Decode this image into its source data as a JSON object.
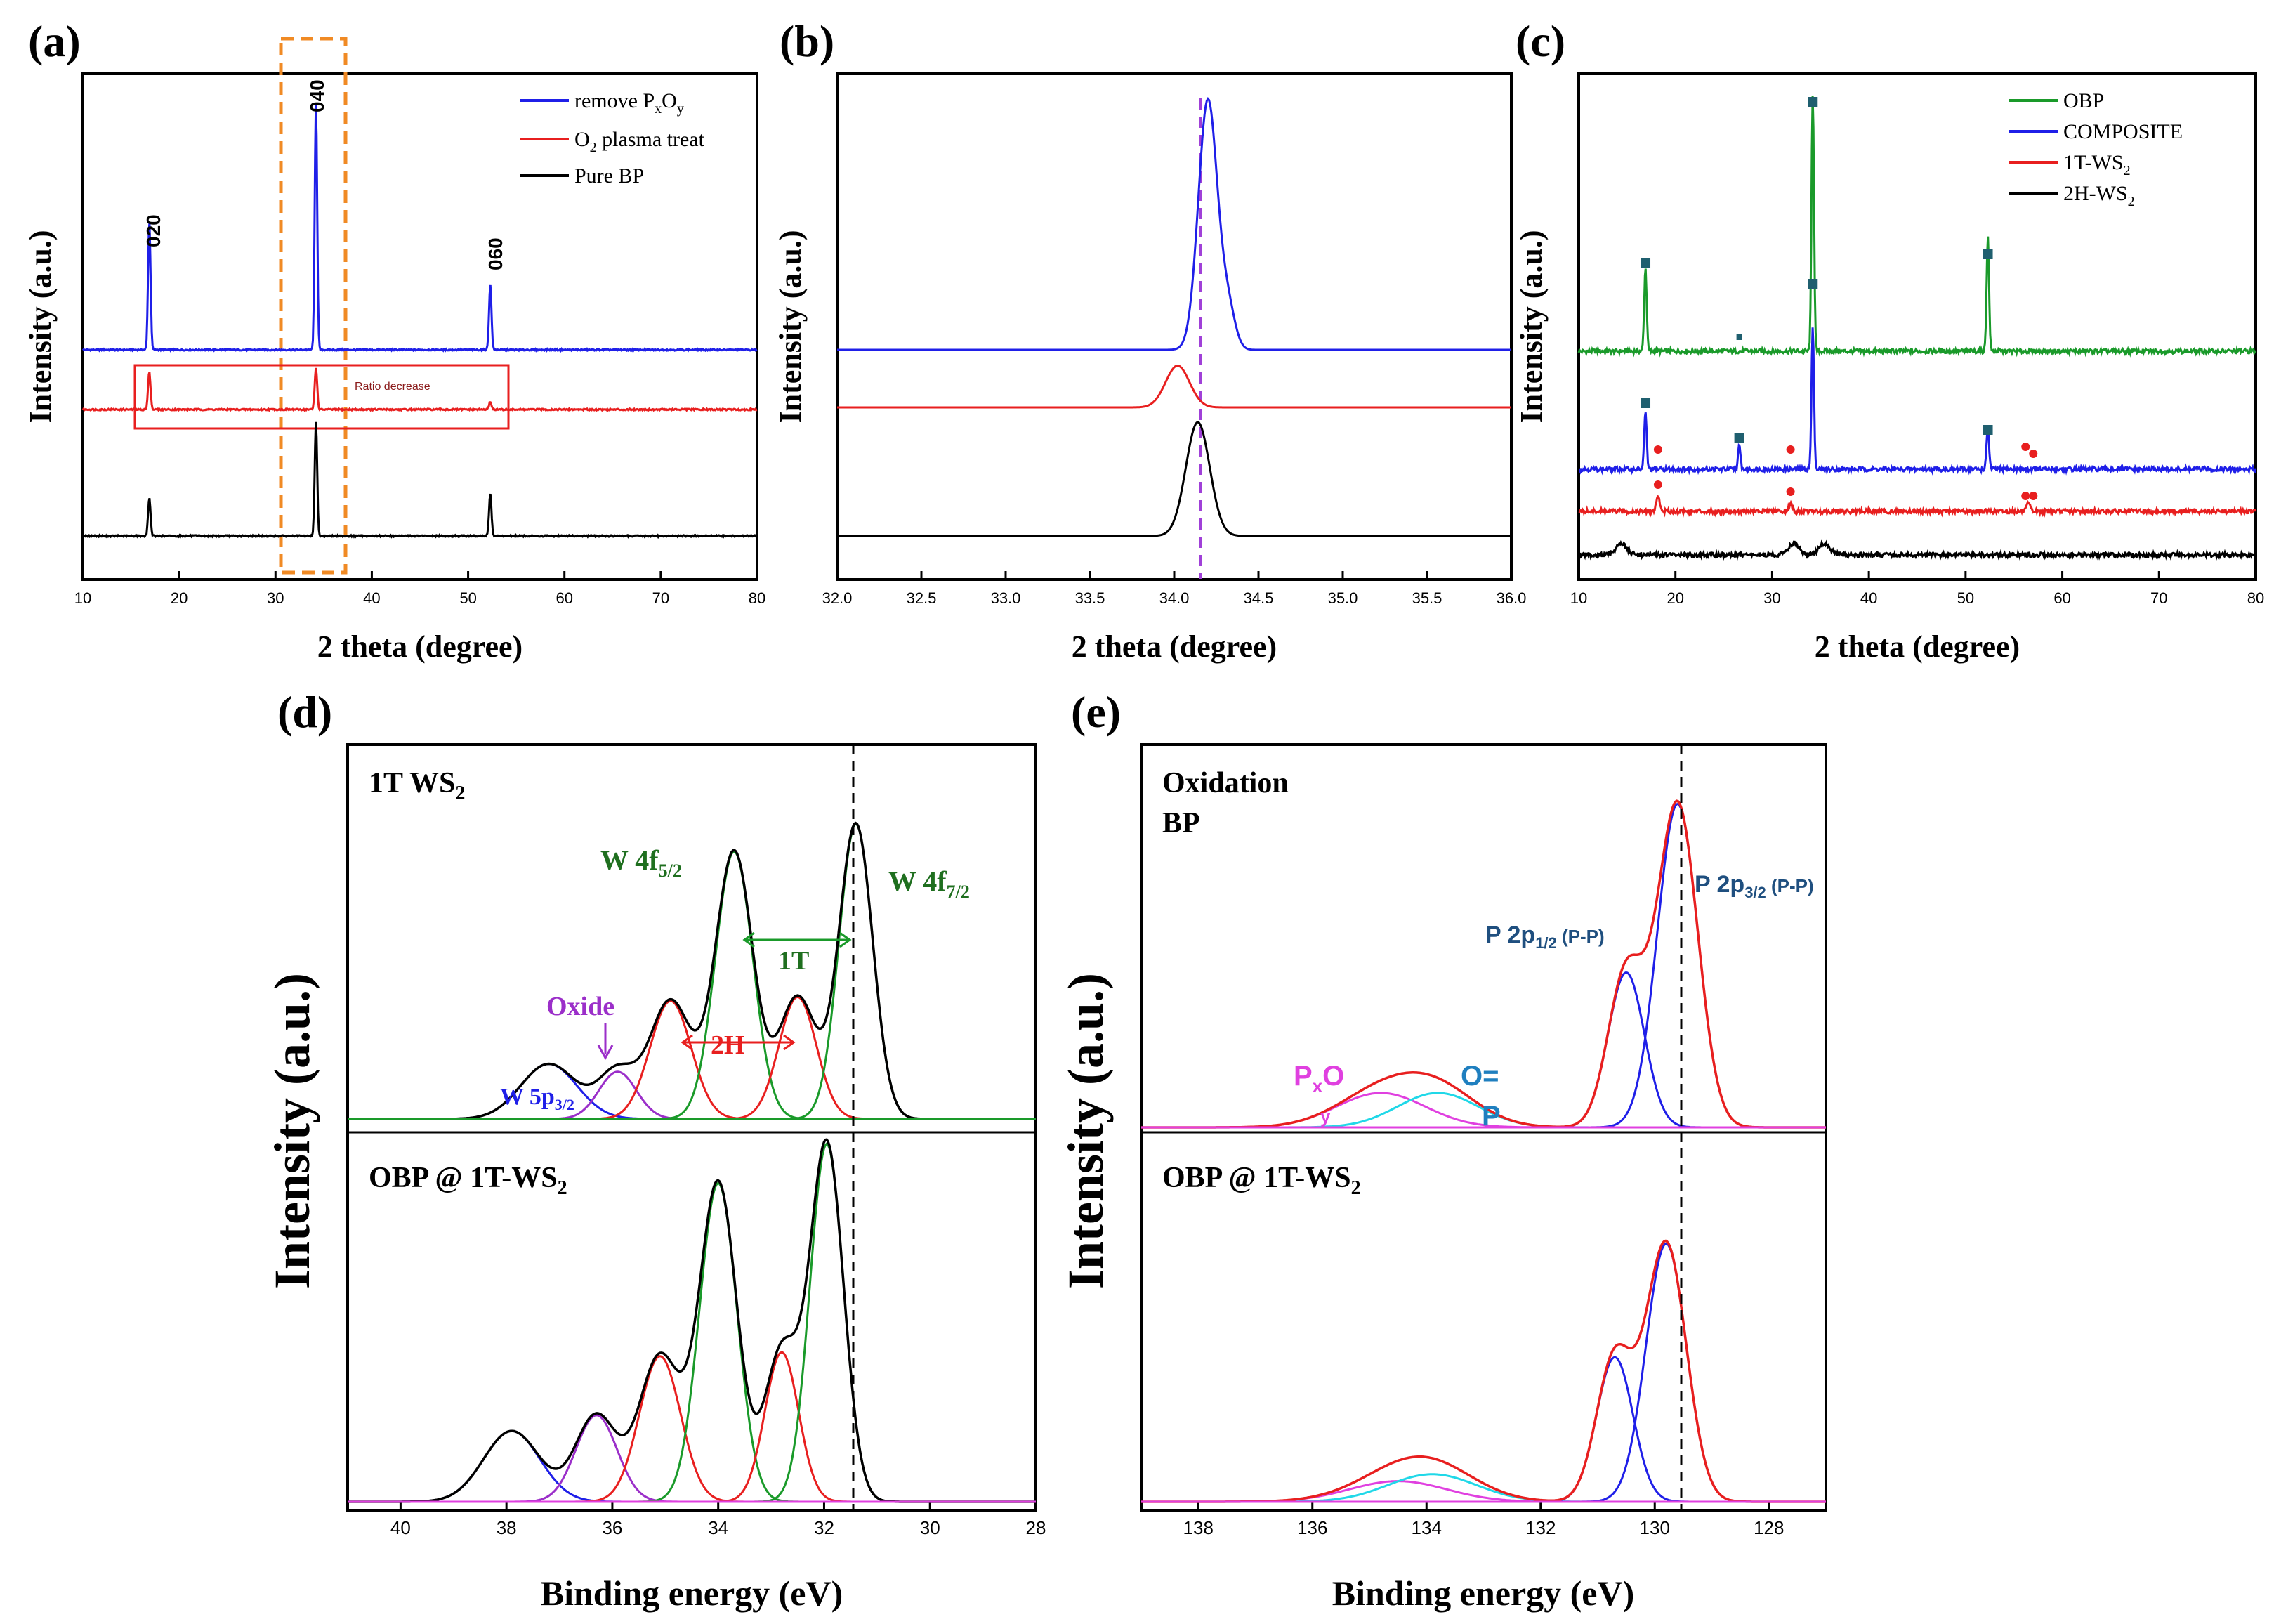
{
  "panels": {
    "a": {
      "letter": "(a)",
      "xlabel": "2 theta (degree)",
      "ylabel": "Intensity (a.u.)",
      "xlim": [
        10,
        80
      ],
      "xticks": [
        "10",
        "20",
        "30",
        "40",
        "50",
        "60",
        "70",
        "80"
      ],
      "legend": [
        {
          "label": "remove P",
          "sub1": "x",
          "mid": "O",
          "sub2": "y",
          "color": "#1f1fe8"
        },
        {
          "label": "O",
          "sub1": "2",
          "mid": " plasma treat",
          "sub2": "",
          "color": "#e81f1f"
        },
        {
          "label": "Pure BP",
          "sub1": "",
          "mid": "",
          "sub2": "",
          "color": "#000000"
        }
      ],
      "peak_labels": [
        "020",
        "040",
        "060"
      ],
      "annotation": "Ratio decrease"
    },
    "b": {
      "letter": "(b)",
      "xlabel": "2 theta (degree)",
      "ylabel": "Intensity (a.u.)",
      "xlim": [
        32.0,
        36.0
      ],
      "xticks": [
        "32.0",
        "32.5",
        "33.0",
        "33.5",
        "34.0",
        "34.5",
        "35.0",
        "35.5",
        "36.0"
      ]
    },
    "c": {
      "letter": "(c)",
      "xlabel": "2 theta (degree)",
      "ylabel": "Intensity (a.u.)",
      "xlim": [
        10,
        80
      ],
      "xticks": [
        "10",
        "20",
        "30",
        "40",
        "50",
        "60",
        "70",
        "80"
      ],
      "legend": [
        {
          "label": "OBP",
          "sub": "",
          "color": "#1a9a2a"
        },
        {
          "label": "COMPOSITE",
          "sub": "",
          "color": "#1f1fe8"
        },
        {
          "label": "1T-WS",
          "sub": "2",
          "color": "#e81f1f"
        },
        {
          "label": "2H-WS",
          "sub": "2",
          "color": "#000000"
        }
      ]
    },
    "d": {
      "letter": "(d)",
      "xlabel": "Binding energy (eV)",
      "ylabel": "Intensity (a.u.)",
      "xlim": [
        41,
        28
      ],
      "xticks": [
        "40",
        "38",
        "36",
        "34",
        "32",
        "30",
        "28"
      ],
      "top_title": "1T WS",
      "top_title_sub": "2",
      "bottom_title": "OBP @ 1T-WS",
      "bottom_title_sub": "2",
      "labels": {
        "w4f52": "W 4f",
        "w4f52_sub": "5/2",
        "w4f72": "W 4f",
        "w4f72_sub": "7/2",
        "oxide": "Oxide",
        "w5p": "W 5p",
        "w5p_sub": "3/2",
        "t1": "1T",
        "h2": "2H"
      }
    },
    "e": {
      "letter": "(e)",
      "xlabel": "Binding energy (eV)",
      "ylabel": "Intensity (a.u.)",
      "xlim": [
        139,
        127
      ],
      "xticks": [
        "138",
        "136",
        "134",
        "132",
        "130",
        "128"
      ],
      "top_title1": "Oxidation",
      "top_title2": "BP",
      "bottom_title": "OBP @ 1T-WS",
      "bottom_title_sub": "2",
      "labels": {
        "p32": "P 2p",
        "p32_sub": "3/2",
        "p32_tail": " (P-P)",
        "p12": "P 2p",
        "p12_sub": "1/2",
        "p12_tail": " (P-P)",
        "pxo": "P",
        "pxo_sub": "x",
        "pxo_o": "O",
        "pxo_y": "y",
        "op1": "O=",
        "op2": "P"
      }
    }
  },
  "colors": {
    "blue": "#1f1fe8",
    "red": "#e81f1f",
    "green": "#1a9a2a",
    "black": "#000000",
    "purple": "#9b2fc9",
    "magenta": "#e040e0",
    "cyan": "#20d8e8",
    "orange_dash": "#f08a24",
    "violet_dash": "#a040d8",
    "marker_teal": "#1f5f6f",
    "label_blue_dark": "#1f4f7f",
    "label_green": "#1f6f1f"
  },
  "chart_data": [
    {
      "panel": "a",
      "type": "line",
      "x_range": [
        10,
        80
      ],
      "series": [
        {
          "name": "remove PxOy",
          "peaks": [
            {
              "x": 16.9,
              "height": 0.34
            },
            {
              "x": 34.2,
              "height": 0.65
            },
            {
              "x": 52.3,
              "height": 0.17
            }
          ]
        },
        {
          "name": "O2 plasma treat",
          "peaks": [
            {
              "x": 16.9,
              "height": 0.1
            },
            {
              "x": 34.2,
              "height": 0.11
            },
            {
              "x": 52.3,
              "height": 0.02
            }
          ]
        },
        {
          "name": "Pure BP",
          "peaks": [
            {
              "x": 16.9,
              "height": 0.1
            },
            {
              "x": 34.2,
              "height": 0.3
            },
            {
              "x": 52.3,
              "height": 0.11
            }
          ]
        }
      ]
    },
    {
      "panel": "b",
      "type": "line",
      "x_range": [
        32.0,
        36.0
      ],
      "reference_line_x": 34.2,
      "series": [
        {
          "name": "remove PxOy",
          "peak_x": 34.2,
          "height": 0.66
        },
        {
          "name": "O2 plasma treat",
          "peak_x": 34.02,
          "height": 0.11
        },
        {
          "name": "Pure BP",
          "peak_x": 34.14,
          "height": 0.3
        }
      ]
    },
    {
      "panel": "c",
      "type": "line",
      "x_range": [
        10,
        80
      ],
      "series": [
        {
          "name": "OBP",
          "peaks_x": [
            16.9,
            34.2,
            52.3
          ],
          "heights": [
            0.22,
            0.68,
            0.3
          ]
        },
        {
          "name": "COMPOSITE",
          "peaks_x": [
            16.9,
            26.6,
            34.2,
            52.3
          ],
          "heights": [
            0.15,
            0.06,
            0.37,
            0.11
          ]
        },
        {
          "name": "1T-WS2",
          "peaks_x": [
            18.2,
            31.9,
            56.5
          ],
          "heights": [
            0.04,
            0.02,
            0.02
          ]
        },
        {
          "name": "2H-WS2",
          "peaks_x": [
            14.4,
            32.2,
            35.4
          ],
          "heights": [
            0.03,
            0.03,
            0.03
          ]
        }
      ],
      "marker_squares_x": [
        16.9,
        26.6,
        34.2,
        52.3
      ],
      "marker_dots_x": [
        18.2,
        31.9,
        56.2,
        57.0
      ]
    },
    {
      "panel": "d",
      "type": "line",
      "x_range": [
        41,
        28
      ],
      "reference_line_x": 31.4,
      "subplots": [
        {
          "name": "1T WS2",
          "components": [
            {
              "color": "blue",
              "center": 37.2,
              "height": 0.14
            },
            {
              "color": "purple",
              "center": 35.9,
              "height": 0.12
            },
            {
              "color": "red",
              "center": 34.9,
              "height": 0.3
            },
            {
              "color": "green",
              "center": 33.7,
              "height": 0.68
            },
            {
              "color": "red",
              "center": 32.5,
              "height": 0.31
            },
            {
              "color": "green",
              "center": 31.4,
              "height": 0.75
            }
          ]
        },
        {
          "name": "OBP @ 1T-WS2",
          "components": [
            {
              "color": "blue",
              "center": 37.9,
              "height": 0.18
            },
            {
              "color": "purple",
              "center": 36.3,
              "height": 0.22
            },
            {
              "color": "red",
              "center": 35.1,
              "height": 0.37
            },
            {
              "color": "green",
              "center": 34.0,
              "height": 0.81
            },
            {
              "color": "red",
              "center": 32.8,
              "height": 0.38
            },
            {
              "color": "green",
              "center": 31.95,
              "height": 0.91
            }
          ]
        }
      ]
    },
    {
      "panel": "e",
      "type": "line",
      "x_range": [
        139,
        127
      ],
      "reference_line_x": 129.6,
      "subplots": [
        {
          "name": "Oxidation BP",
          "components": [
            {
              "color": "magenta",
              "center": 134.8,
              "height": 0.1
            },
            {
              "color": "cyan",
              "center": 133.8,
              "height": 0.1
            },
            {
              "color": "blue",
              "center": 130.5,
              "height": 0.45
            },
            {
              "color": "blue",
              "center": 129.6,
              "height": 0.94
            }
          ]
        },
        {
          "name": "OBP @ 1T-WS2",
          "components": [
            {
              "color": "magenta",
              "center": 134.5,
              "height": 0.06
            },
            {
              "color": "cyan",
              "center": 133.9,
              "height": 0.08
            },
            {
              "color": "blue",
              "center": 130.7,
              "height": 0.42
            },
            {
              "color": "blue",
              "center": 129.8,
              "height": 0.75
            }
          ]
        }
      ]
    }
  ]
}
